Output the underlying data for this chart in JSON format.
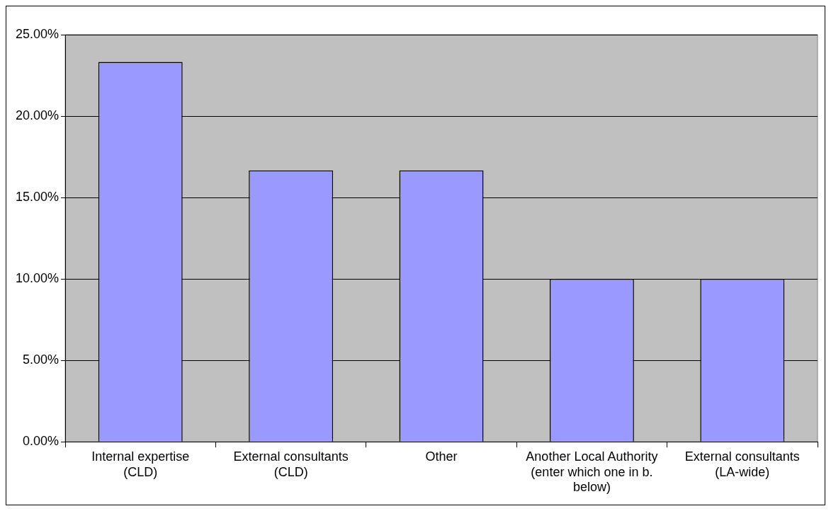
{
  "chart_data": {
    "type": "bar",
    "categories": [
      "Internal expertise (CLD)",
      "External consultants (CLD)",
      "Other",
      "Another Local Authority (enter which one in b. below)",
      "External consultants (LA-wide)"
    ],
    "values": [
      23.33,
      16.67,
      16.67,
      10,
      10
    ],
    "color": "#9999ff",
    "ylim": [
      0,
      25
    ],
    "yticks": [
      {
        "value": 0,
        "label": "0.00%"
      },
      {
        "value": 5,
        "label": "5.00%"
      },
      {
        "value": 10,
        "label": "10.00%"
      },
      {
        "value": 15,
        "label": "15.00%"
      },
      {
        "value": 20,
        "label": "20.00%"
      },
      {
        "value": 25,
        "label": "25.00%"
      }
    ],
    "grid": "y",
    "legend": false
  }
}
